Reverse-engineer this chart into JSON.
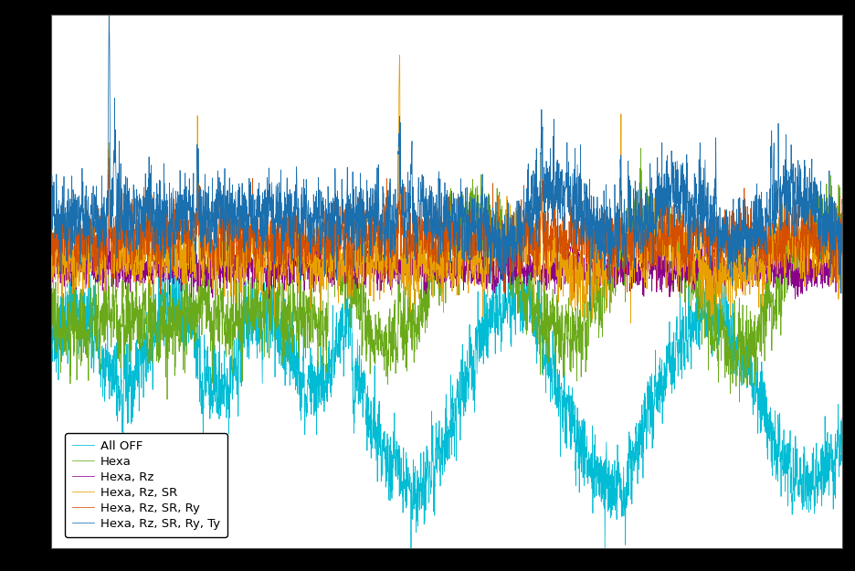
{
  "background_color": "#000000",
  "plot_bg_color": "#ffffff",
  "grid_color": "#c8c8c8",
  "legend_entries": [
    "Hexa, Rz, SR, Ry, Ty",
    "Hexa, Rz, SR, Ry",
    "Hexa, Rz, SR",
    "Hexa, Rz",
    "Hexa",
    "All OFF"
  ],
  "line_colors": [
    "#1a6faf",
    "#d45000",
    "#e8a000",
    "#8b008b",
    "#6aaa1a",
    "#00bcd4"
  ],
  "n_points": 4000,
  "seed": 42,
  "figsize": [
    9.36,
    6.25
  ],
  "dpi": 100,
  "ylim": [
    -1.5,
    1.8
  ]
}
